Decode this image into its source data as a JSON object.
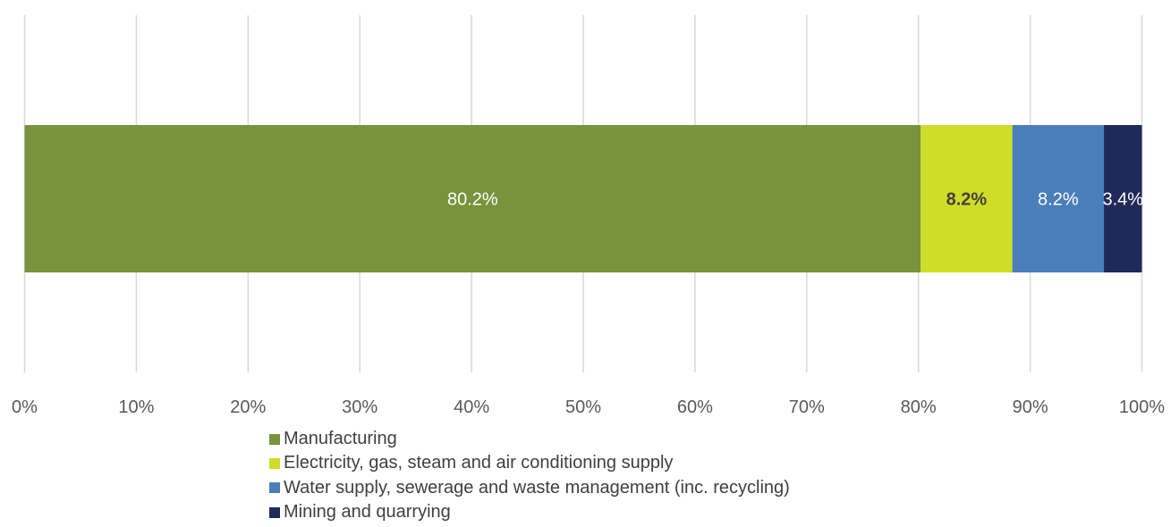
{
  "chart_data": {
    "type": "bar",
    "orientation": "horizontal",
    "stacked": true,
    "title": "",
    "xlabel": "",
    "ylabel": "",
    "xlim": [
      0,
      100
    ],
    "x_ticks": [
      "0%",
      "10%",
      "20%",
      "30%",
      "40%",
      "50%",
      "60%",
      "70%",
      "80%",
      "90%",
      "100%"
    ],
    "grid": "vertical",
    "legend_position": "bottom",
    "series": [
      {
        "name": "Manufacturing",
        "value": 80.2,
        "label": "80.2%",
        "color": "#77933c",
        "label_color": "#ffffff",
        "label_bold": false
      },
      {
        "name": "Electricity, gas, steam and air conditioning supply",
        "value": 8.2,
        "label": "8.2%",
        "color": "#d0dd28",
        "label_color": "#404040",
        "label_bold": true
      },
      {
        "name": "Water supply, sewerage and waste management (inc. recycling)",
        "value": 8.2,
        "label": "8.2%",
        "color": "#4a7ebb",
        "label_color": "#ffffff",
        "label_bold": false
      },
      {
        "name": "Mining and quarrying",
        "value": 3.4,
        "label": "3.4%",
        "color": "#1f2a5a",
        "label_color": "#ffffff",
        "label_bold": false
      }
    ]
  }
}
